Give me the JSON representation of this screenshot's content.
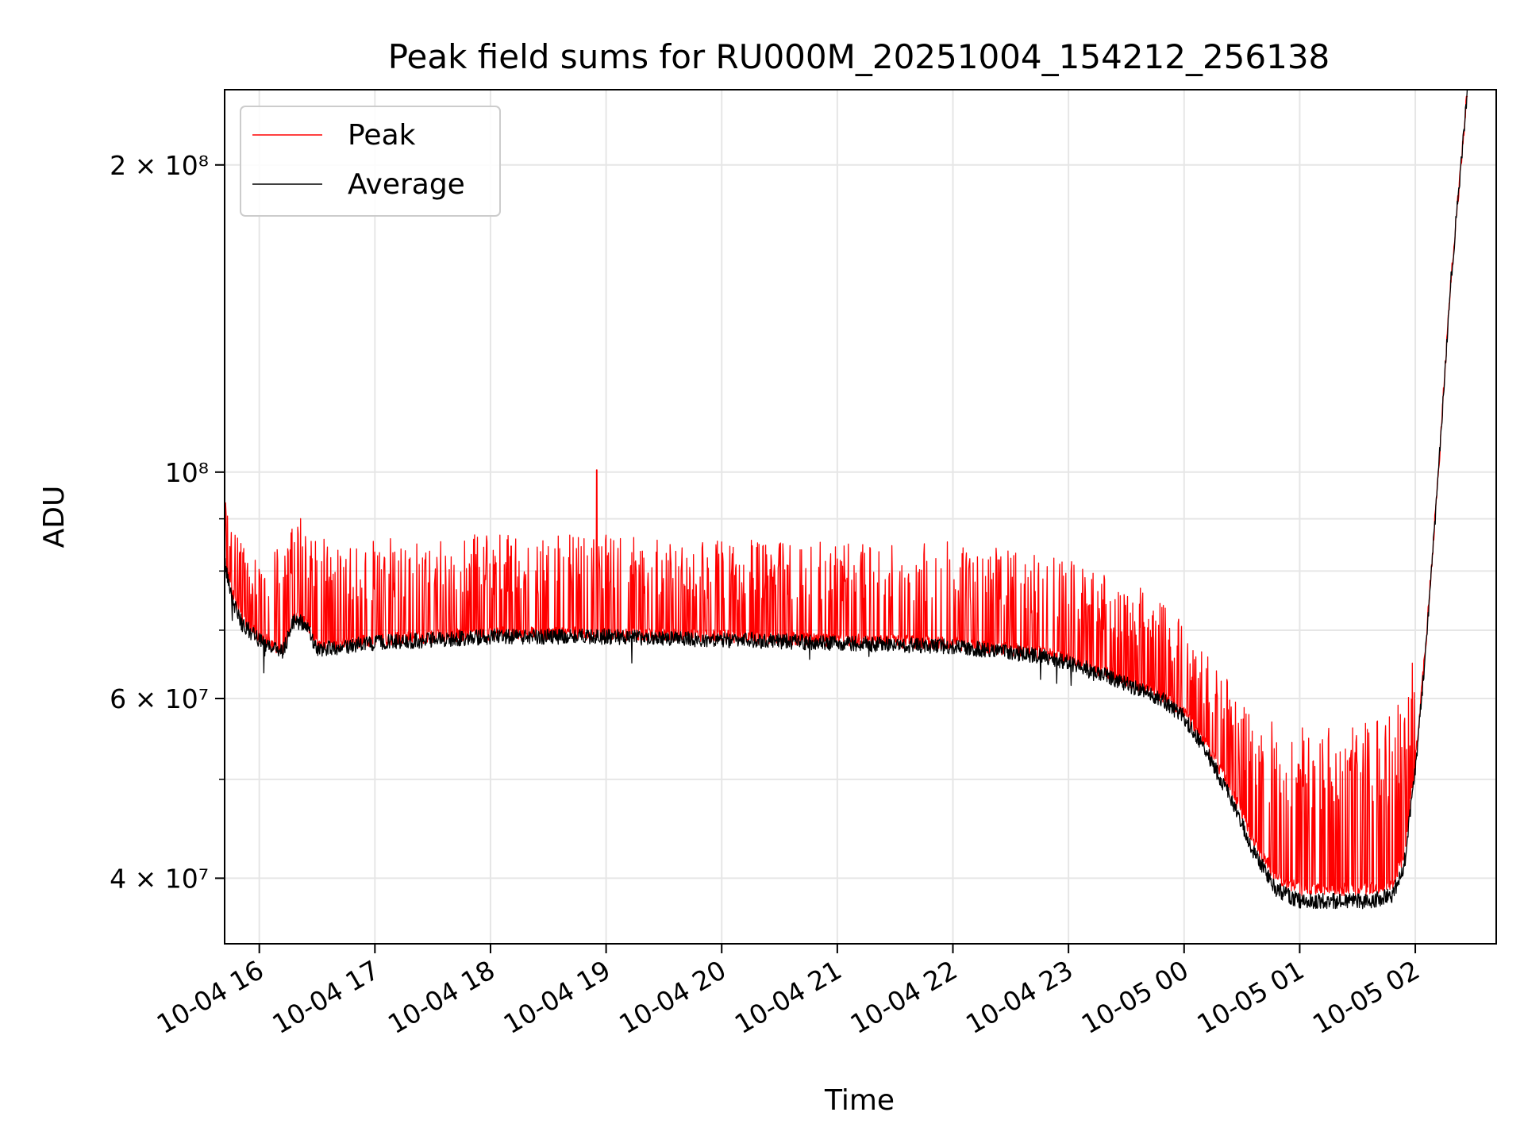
{
  "chart_data": {
    "type": "line",
    "title": "Peak field sums for RU000M_20251004_154212_256138",
    "xlabel": "Time",
    "ylabel": "ADU",
    "yscale": "log",
    "ylim": [
      34500000,
      237000000
    ],
    "xlim_hours": [
      15.7,
      26.7
    ],
    "grid": true,
    "legend_location": "top-left",
    "x_ticks": [
      {
        "label": "10-04 16",
        "hour": 16
      },
      {
        "label": "10-04 17",
        "hour": 17
      },
      {
        "label": "10-04 18",
        "hour": 18
      },
      {
        "label": "10-04 19",
        "hour": 19
      },
      {
        "label": "10-04 20",
        "hour": 20
      },
      {
        "label": "10-04 21",
        "hour": 21
      },
      {
        "label": "10-04 22",
        "hour": 22
      },
      {
        "label": "10-04 23",
        "hour": 23
      },
      {
        "label": "10-05 00",
        "hour": 24
      },
      {
        "label": "10-05 01",
        "hour": 25
      },
      {
        "label": "10-05 02",
        "hour": 26
      }
    ],
    "y_ticks": [
      {
        "label": "4 × 10⁷",
        "value": 40000000
      },
      {
        "label": "6 × 10⁷",
        "value": 60000000
      },
      {
        "label": "10⁸",
        "value": 100000000
      },
      {
        "label": "2 × 10⁸",
        "value": 200000000
      }
    ],
    "y_minor_ticks": [
      50000000,
      70000000,
      80000000,
      90000000
    ],
    "series": [
      {
        "name": "Peak",
        "color": "#ff0000",
        "style": "spiky",
        "x": [
          15.7,
          15.75,
          15.85,
          16.0,
          16.2,
          16.3,
          16.4,
          16.5,
          17.0,
          18.0,
          19.0,
          20.0,
          21.0,
          22.0,
          22.8,
          23.0,
          23.2,
          23.5,
          23.8,
          24.0,
          24.2,
          24.4,
          24.6,
          24.8,
          25.0,
          25.2,
          25.4,
          25.6,
          25.8,
          25.9,
          26.0,
          26.1,
          26.2,
          26.3,
          26.45
        ],
        "baseline": [
          83000000,
          77000000,
          72000000,
          69000000,
          67000000,
          72000000,
          72000000,
          67500000,
          68500000,
          69500000,
          69500000,
          69000000,
          68500000,
          68000000,
          66500000,
          65500000,
          64500000,
          62500000,
          60500000,
          58000000,
          54000000,
          49000000,
          43500000,
          40000000,
          39000000,
          39000000,
          39000000,
          39000000,
          39500000,
          42000000,
          52000000,
          70000000,
          100000000,
          150000000,
          237000000
        ],
        "spike_top": [
          95000000,
          88000000,
          86000000,
          86000000,
          85000000,
          93000000,
          88000000,
          86000000,
          86000000,
          87000000,
          87000000,
          86000000,
          86000000,
          85500000,
          83000000,
          82000000,
          81000000,
          79000000,
          76000000,
          72000000,
          67000000,
          62000000,
          58000000,
          57000000,
          57000000,
          57000000,
          57000000,
          57000000,
          58000000,
          62000000,
          70000000,
          85000000,
          105000000,
          150000000,
          237000000
        ],
        "max_spike": {
          "hour": 18.92,
          "value": 100500000
        }
      },
      {
        "name": "Average",
        "color": "#000000",
        "style": "noisy",
        "x": [
          15.7,
          15.75,
          15.85,
          16.0,
          16.2,
          16.3,
          16.4,
          16.5,
          17.0,
          18.0,
          19.0,
          20.0,
          21.0,
          22.0,
          22.8,
          23.0,
          23.2,
          23.5,
          23.8,
          24.0,
          24.2,
          24.4,
          24.6,
          24.8,
          25.0,
          25.2,
          25.4,
          25.6,
          25.8,
          25.9,
          26.0,
          26.1,
          26.2,
          26.3,
          26.45
        ],
        "values": [
          82000000,
          76000000,
          71000000,
          68500000,
          66500000,
          71500000,
          71000000,
          67000000,
          68000000,
          69000000,
          69000000,
          68500000,
          68000000,
          67500000,
          66000000,
          65000000,
          64000000,
          62000000,
          60000000,
          57500000,
          53000000,
          48000000,
          42500000,
          39000000,
          38000000,
          38000000,
          38000000,
          38000000,
          38500000,
          41000000,
          51000000,
          69000000,
          100000000,
          150000000,
          237000000
        ]
      }
    ]
  }
}
